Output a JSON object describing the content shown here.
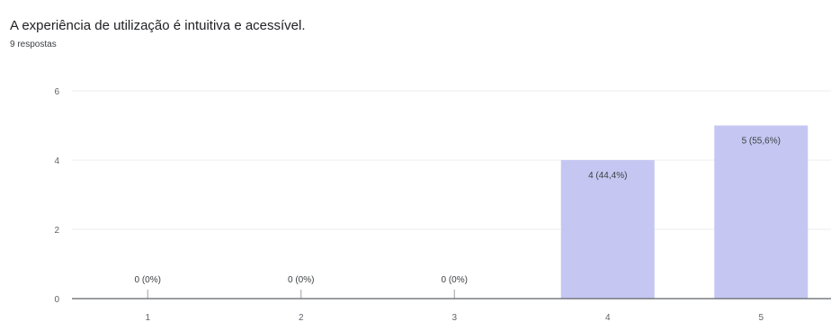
{
  "question": {
    "title": "A experiência de utilização é intuitiva e acessível.",
    "responses": "9 respostas"
  },
  "colors": {
    "bar": "#c5c7f2",
    "grid": "#ececec",
    "baseline": "#5f6368"
  },
  "chart_data": {
    "type": "bar",
    "categories": [
      "1",
      "2",
      "3",
      "4",
      "5"
    ],
    "values": [
      0,
      0,
      0,
      4,
      5
    ],
    "data_labels": [
      "0 (0%)",
      "0 (0%)",
      "0 (0%)",
      "4 (44,4%)",
      "5 (55,6%)"
    ],
    "title": "A experiência de utilização é intuitiva e acessível.",
    "xlabel": "",
    "ylabel": "",
    "ylim": [
      0,
      6
    ],
    "yticks": [
      "0",
      "2",
      "4",
      "6"
    ],
    "grid": true,
    "legend": "none"
  }
}
